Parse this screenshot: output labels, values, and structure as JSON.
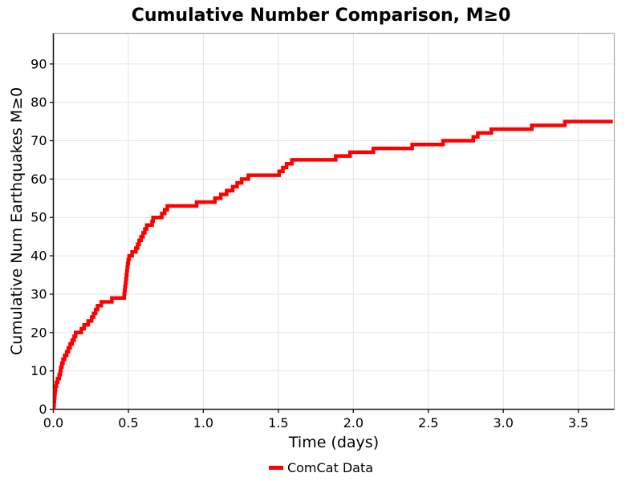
{
  "title": "Cumulative Number Comparison, M≥0",
  "styles": {
    "series_red": "#ff0000",
    "grid_color": "#e5e5e5",
    "spine_dark": "#1a1a1a",
    "spine_light": "#adadad",
    "background": "#ffffff"
  },
  "chart_data": {
    "type": "line",
    "subtype": "cumulative_step",
    "title": "Cumulative Number Comparison, M≥0",
    "xlabel": "Time (days)",
    "ylabel": "Cumulative Num Earthquakes M≥0",
    "xlim": [
      0,
      3.74
    ],
    "ylim": [
      0,
      98
    ],
    "xticks": [
      0.0,
      0.5,
      1.0,
      1.5,
      2.0,
      2.5,
      3.0,
      3.5
    ],
    "xtick_labels": [
      "0.0",
      "0.5",
      "1.0",
      "1.5",
      "2.0",
      "2.5",
      "3.0",
      "3.5"
    ],
    "yticks": [
      0,
      10,
      20,
      30,
      40,
      50,
      60,
      70,
      80,
      90
    ],
    "ytick_labels": [
      "0",
      "10",
      "20",
      "30",
      "40",
      "50",
      "60",
      "70",
      "80",
      "90"
    ],
    "grid": true,
    "legend": {
      "position": "bottom-center",
      "entries": [
        {
          "label": "ComCat Data",
          "color": "#ff0000"
        }
      ]
    },
    "series": [
      {
        "name": "ComCat Data",
        "color": "#ff0000",
        "line_width": 4.5,
        "start_value": 0,
        "final_value": 75,
        "end_time_days": 3.73,
        "event_times_days": [
          0.003,
          0.005,
          0.007,
          0.009,
          0.011,
          0.014,
          0.021,
          0.028,
          0.039,
          0.046,
          0.05,
          0.057,
          0.064,
          0.075,
          0.089,
          0.1,
          0.112,
          0.125,
          0.138,
          0.148,
          0.187,
          0.205,
          0.232,
          0.255,
          0.268,
          0.282,
          0.295,
          0.32,
          0.39,
          0.472,
          0.475,
          0.478,
          0.481,
          0.484,
          0.487,
          0.49,
          0.493,
          0.496,
          0.5,
          0.505,
          0.525,
          0.55,
          0.562,
          0.572,
          0.585,
          0.598,
          0.61,
          0.622,
          0.658,
          0.665,
          0.723,
          0.742,
          0.76,
          0.955,
          1.077,
          1.116,
          1.155,
          1.196,
          1.225,
          1.255,
          1.3,
          1.505,
          1.53,
          1.555,
          1.59,
          1.883,
          1.978,
          2.133,
          2.392,
          2.598,
          2.8,
          2.83,
          2.92,
          3.19,
          3.41
        ],
        "cumulative_counts": [
          1,
          2,
          3,
          4,
          5,
          6,
          7,
          8,
          9,
          10,
          11,
          12,
          13,
          14,
          15,
          16,
          17,
          18,
          19,
          20,
          21,
          22,
          23,
          24,
          25,
          26,
          27,
          28,
          29,
          30,
          31,
          32,
          33,
          34,
          35,
          36,
          37,
          38,
          39,
          40,
          41,
          42,
          43,
          44,
          45,
          46,
          47,
          48,
          49,
          50,
          51,
          52,
          53,
          54,
          55,
          56,
          57,
          58,
          59,
          60,
          61,
          62,
          63,
          64,
          65,
          66,
          67,
          68,
          69,
          70,
          71,
          72,
          73,
          74,
          75
        ]
      }
    ]
  }
}
